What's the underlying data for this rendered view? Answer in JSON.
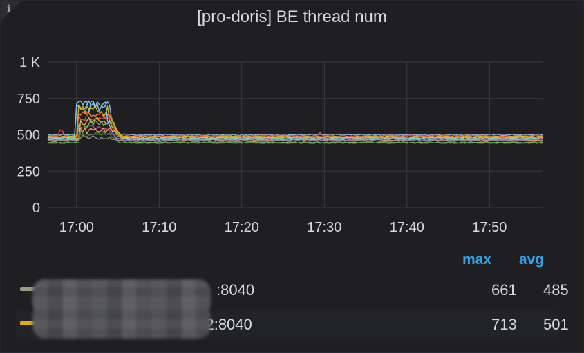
{
  "panel": {
    "title": "[pro-doris] BE thread num",
    "info_icon": "info-icon"
  },
  "chart_data": {
    "type": "line",
    "title": "[pro-doris] BE thread num",
    "x_tick_labels": [
      "17:00",
      "17:10",
      "17:20",
      "17:30",
      "17:40",
      "17:50"
    ],
    "x_ticks_minutes": [
      0,
      10,
      20,
      30,
      40,
      50
    ],
    "x_range_minutes": [
      -3.5,
      56.5
    ],
    "y_tick_labels": [
      "0",
      "250",
      "500",
      "750",
      "1 K"
    ],
    "y_ticks": [
      0,
      250,
      500,
      750,
      1000
    ],
    "ylim": [
      0,
      1000
    ],
    "grid": true,
    "series": [
      {
        "color": "#8ab8ff",
        "base": 500,
        "peak": 735,
        "peak_start": 0.0,
        "peak_end": 4.0,
        "noise": 5
      },
      {
        "color": "#e24d42",
        "base": 493,
        "peak": 640,
        "peak_start": 0.1,
        "peak_end": 4.2,
        "noise": 5
      },
      {
        "color": "#e0b400",
        "base": 488,
        "peak": 700,
        "peak_start": 0.1,
        "peak_end": 3.8,
        "noise": 5
      },
      {
        "color": "#ef843c",
        "base": 484,
        "peak": 660,
        "peak_start": 0.2,
        "peak_end": 4.3,
        "noise": 5
      },
      {
        "color": "#eab839",
        "base": 480,
        "peak": 610,
        "peak_start": 0.3,
        "peak_end": 4.5,
        "noise": 6
      },
      {
        "color": "#6ed0e0",
        "base": 476,
        "peak": 740,
        "peak_start": 0.0,
        "peak_end": 3.5,
        "noise": 4
      },
      {
        "color": "#ba43a9",
        "base": 470,
        "peak": 560,
        "peak_start": 0.2,
        "peak_end": 4.0,
        "noise": 5
      },
      {
        "color": "#f9934e",
        "base": 466,
        "peak": 540,
        "peak_start": 0.3,
        "peak_end": 4.8,
        "noise": 5
      },
      {
        "color": "#8d8d94",
        "base": 460,
        "peak": 485,
        "peak_start": 0.3,
        "peak_end": 4.0,
        "noise": 4
      },
      {
        "color": "#7eb26d",
        "base": 448,
        "peak": 600,
        "peak_start": 0.2,
        "peak_end": 4.6,
        "noise": 4
      },
      {
        "color": "#508642",
        "base": 443,
        "peak": 520,
        "peak_start": 0.3,
        "peak_end": 4.2,
        "noise": 3
      }
    ]
  },
  "legend": {
    "col_max": "max",
    "col_avg": "avg",
    "rows": [
      {
        "name_suffix": ":8040",
        "color": "#9a9d83",
        "max": "661",
        "avg": "485"
      },
      {
        "name_suffix": "302:8040",
        "color": "#e5ac0e",
        "max": "713",
        "avg": "501"
      }
    ]
  }
}
